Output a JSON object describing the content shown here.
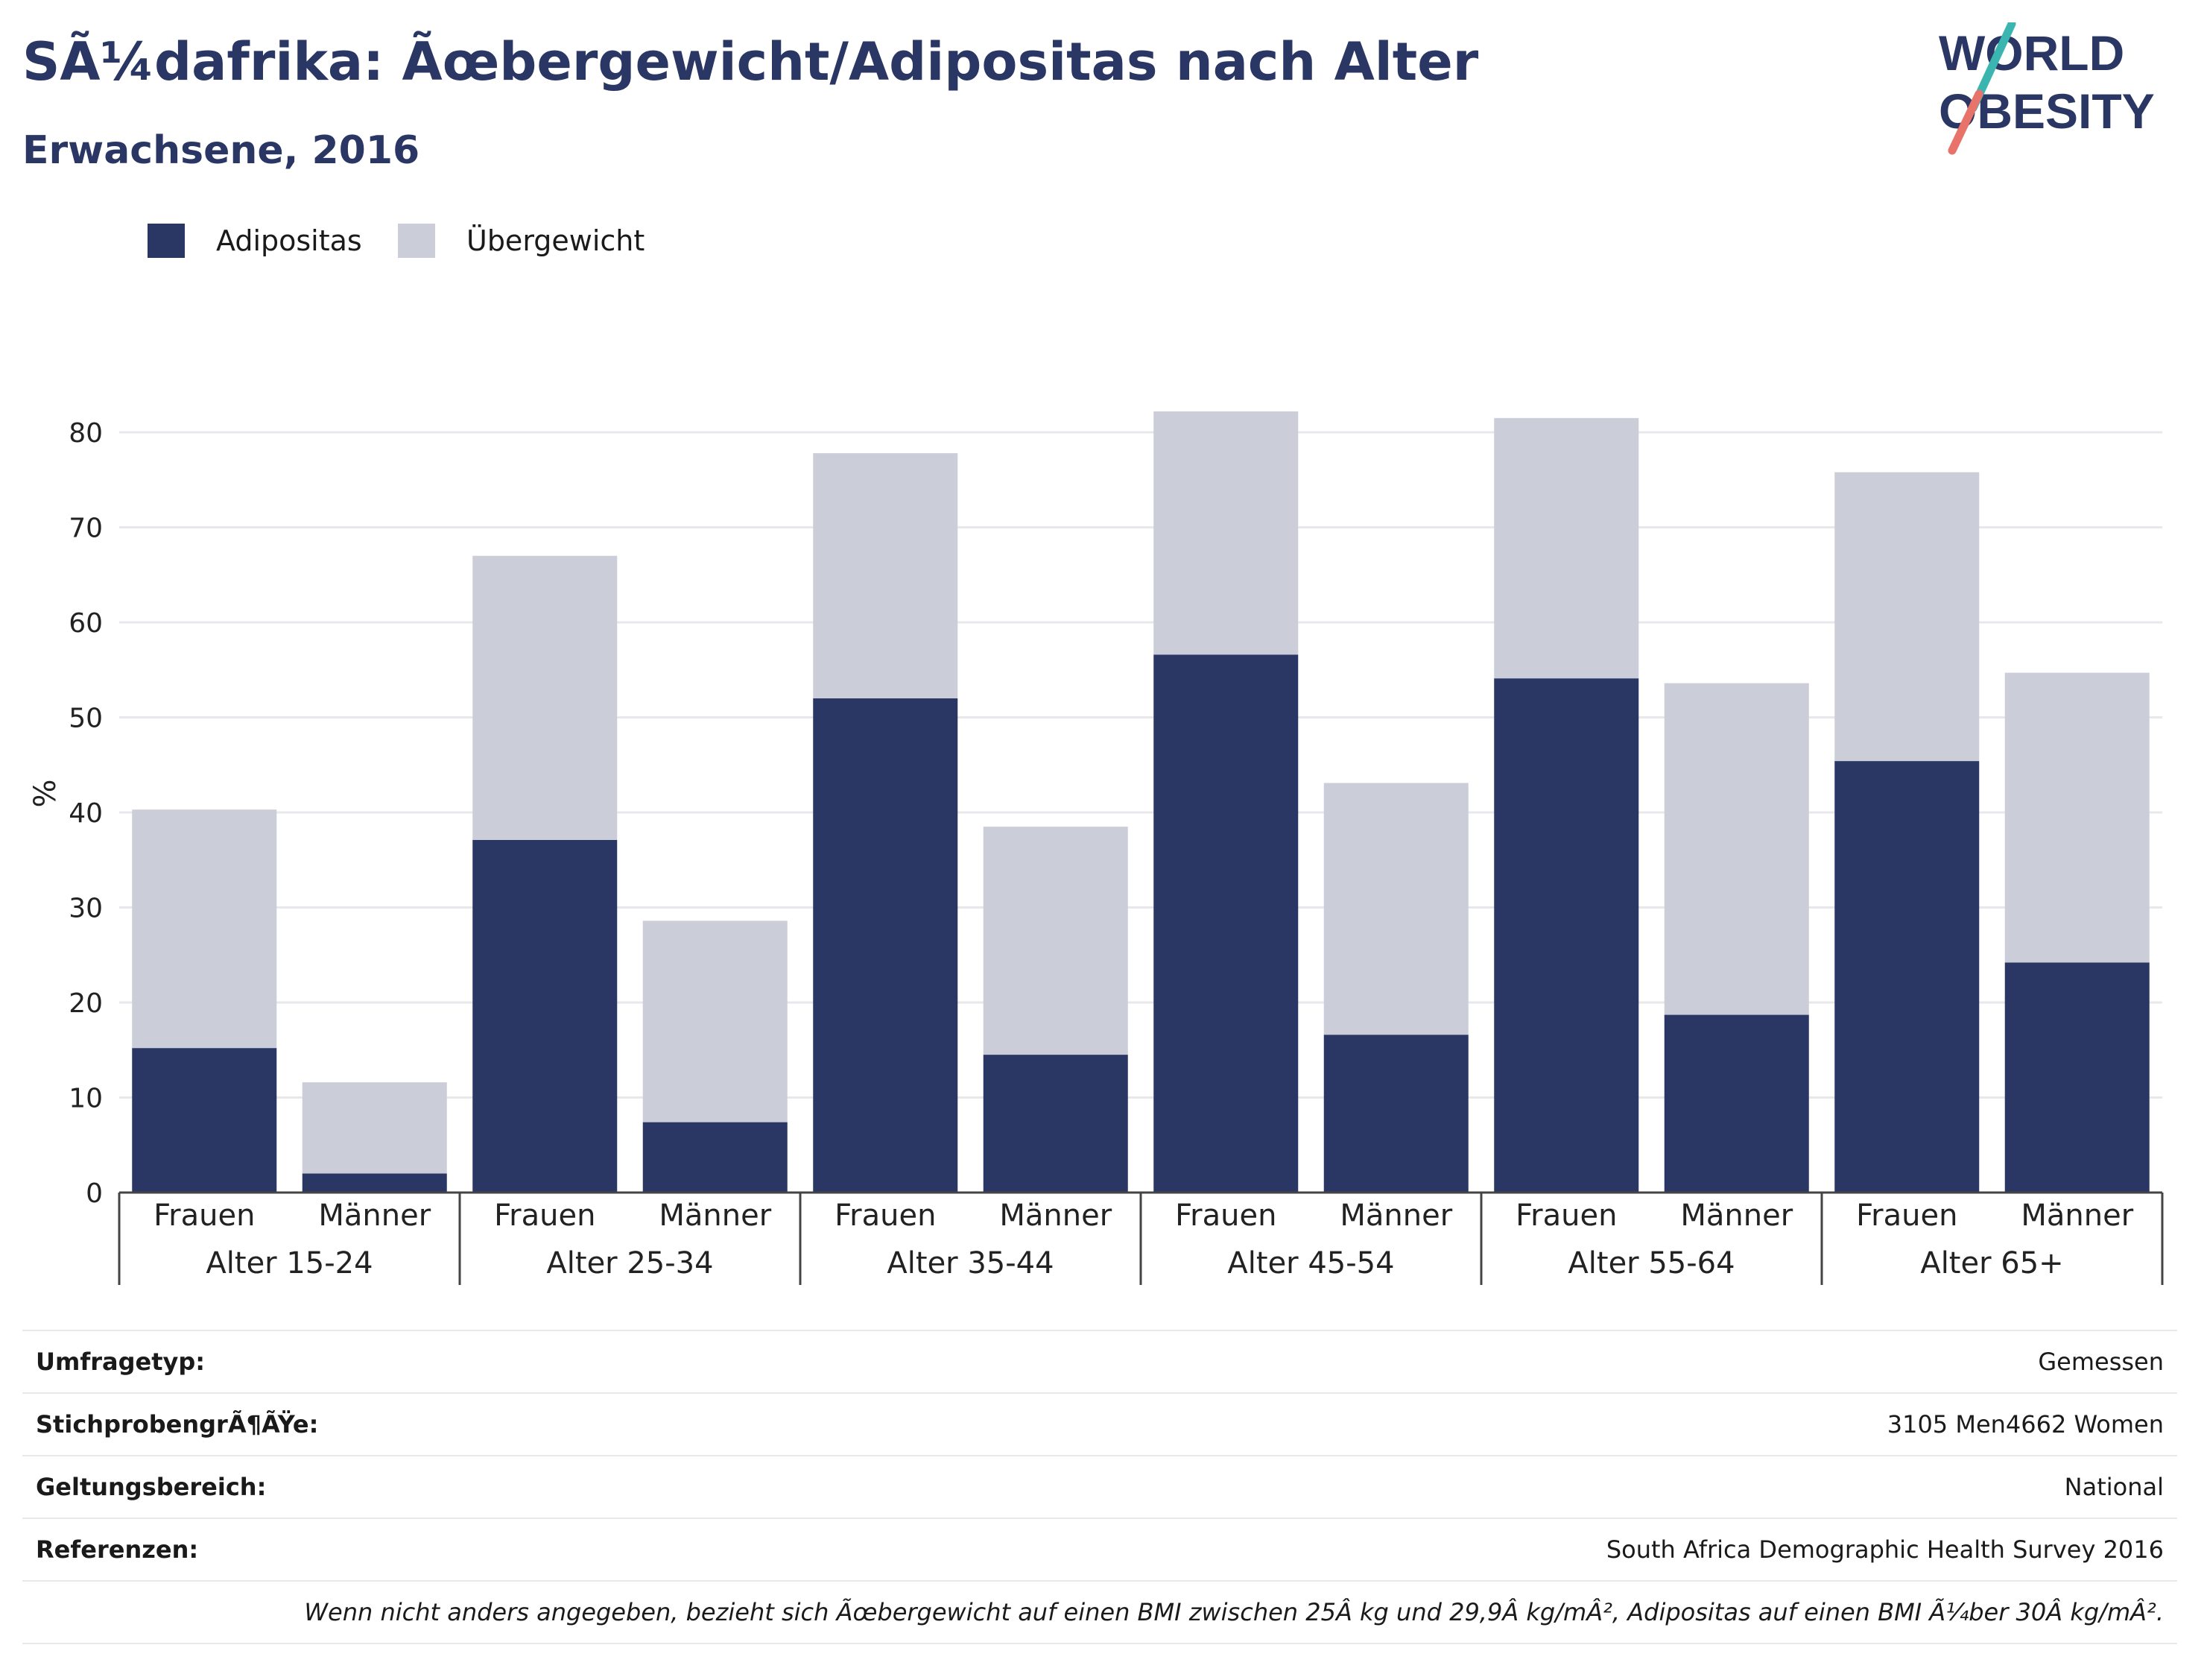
{
  "header": {
    "title": "SÃ¼dafrika: Ãœbergewicht/Adipositas nach Alter",
    "subtitle": "Erwachsene, 2016"
  },
  "logo": {
    "line1": "WORLD",
    "line2": "OBESITY",
    "icon": "world-obesity-logo"
  },
  "colors": {
    "obesity": "#2a3663",
    "overweight": "#cbcdd9",
    "logo_teal": "#3ab5b0",
    "logo_coral": "#e8736a"
  },
  "legend": [
    {
      "label": "Adipositas",
      "color": "#2a3663"
    },
    {
      "label": "Übergewicht",
      "color": "#cbcdd9"
    }
  ],
  "chart_data": {
    "type": "bar",
    "stacked": true,
    "ylabel": "%",
    "ylim": [
      0,
      85
    ],
    "yticks": [
      0,
      10,
      20,
      30,
      40,
      50,
      60,
      70,
      80
    ],
    "grid": true,
    "groups": [
      "Alter 15-24",
      "Alter 25-34",
      "Alter 35-44",
      "Alter 45-54",
      "Alter 55-64",
      "Alter 65+"
    ],
    "subcategories": [
      "Frauen",
      "Männer"
    ],
    "categories": [
      "Frauen",
      "Männer",
      "Frauen",
      "Männer",
      "Frauen",
      "Männer",
      "Frauen",
      "Männer",
      "Frauen",
      "Männer",
      "Frauen",
      "Männer"
    ],
    "series": [
      {
        "name": "Adipositas",
        "values": [
          15.2,
          2.0,
          37.1,
          7.4,
          52.0,
          14.5,
          56.6,
          16.6,
          54.1,
          18.7,
          45.4,
          24.2
        ]
      },
      {
        "name": "Übergewicht",
        "values": [
          25.1,
          9.6,
          29.9,
          21.2,
          25.8,
          24.0,
          25.6,
          26.5,
          27.4,
          34.9,
          30.4,
          30.5
        ]
      }
    ]
  },
  "info": {
    "rows": [
      {
        "key": "Umfragetyp:",
        "value": "Gemessen"
      },
      {
        "key": "StichprobengrÃ¶ÃŸe:",
        "value": "3105 Men4662 Women"
      },
      {
        "key": "Geltungsbereich:",
        "value": "National"
      },
      {
        "key": "Referenzen:",
        "value": "South Africa Demographic Health Survey 2016"
      }
    ],
    "note": "Wenn nicht anders angegeben, bezieht sich Ãœbergewicht auf einen BMI zwischen 25Â kg und 29,9Â kg/mÂ², Adipositas auf einen BMI Ã¼ber 30Â kg/mÂ²."
  }
}
